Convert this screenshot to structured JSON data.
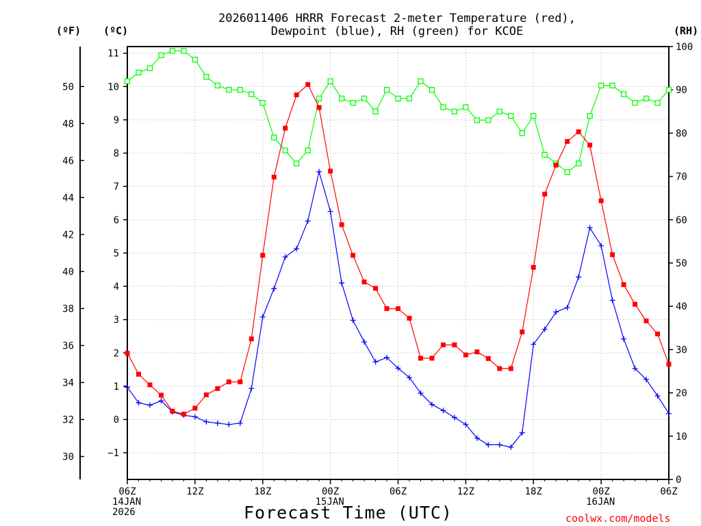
{
  "chart_data": {
    "type": "line",
    "title_line1": "2026011406 HRRR Forecast 2-meter Temperature (red),",
    "title_line2": "Dewpoint (blue), RH (green) for KCOE",
    "xlabel": "Forecast Time (UTC)",
    "left_outer_unit": "(ºF)",
    "left_inner_unit": "(ºC)",
    "right_unit": "(RH)",
    "x_ticks": [
      {
        "hour": 0,
        "label": "06Z"
      },
      {
        "hour": 6,
        "label": "12Z"
      },
      {
        "hour": 12,
        "label": "18Z"
      },
      {
        "hour": 18,
        "label": "00Z"
      },
      {
        "hour": 24,
        "label": "06Z"
      },
      {
        "hour": 30,
        "label": "12Z"
      },
      {
        "hour": 36,
        "label": "18Z"
      },
      {
        "hour": 42,
        "label": "00Z"
      },
      {
        "hour": 48,
        "label": "06Z"
      }
    ],
    "date_labels": [
      {
        "hour": 0,
        "line1": "14JAN",
        "line2": "2026"
      },
      {
        "hour": 18,
        "line1": "15JAN",
        "line2": ""
      },
      {
        "hour": 42,
        "line1": "16JAN",
        "line2": ""
      }
    ],
    "xlim": [
      0,
      48
    ],
    "celsius_ylim": [
      -1.8,
      11.2
    ],
    "celsius_ticks": [
      -1,
      0,
      1,
      2,
      3,
      4,
      5,
      6,
      7,
      8,
      9,
      10,
      11
    ],
    "fahrenheit_ticks": [
      30,
      32,
      34,
      36,
      38,
      40,
      42,
      44,
      46,
      48,
      50
    ],
    "rh_ylim": [
      0,
      100
    ],
    "rh_ticks": [
      0,
      10,
      20,
      30,
      40,
      50,
      60,
      70,
      80,
      90,
      100
    ],
    "series": [
      {
        "name": "Temperature",
        "unit": "C",
        "color": "#ff0000",
        "marker": "filled-square",
        "values": [
          1.99,
          1.36,
          1.04,
          0.73,
          0.25,
          0.16,
          0.34,
          0.74,
          0.93,
          1.13,
          1.13,
          2.42,
          4.93,
          7.28,
          8.75,
          9.75,
          10.06,
          9.37,
          7.46,
          5.85,
          4.93,
          4.13,
          3.94,
          3.33,
          3.33,
          3.04,
          1.84,
          1.84,
          2.24,
          2.24,
          1.94,
          2.03,
          1.83,
          1.53,
          1.53,
          2.63,
          4.57,
          6.77,
          7.64,
          8.35,
          8.64,
          8.24,
          6.57,
          4.95,
          4.05,
          3.46,
          2.96,
          2.57,
          1.66
        ]
      },
      {
        "name": "Dewpoint",
        "unit": "C",
        "color": "#0000ff",
        "marker": "plus",
        "values": [
          0.97,
          0.5,
          0.43,
          0.56,
          0.23,
          0.13,
          0.08,
          -0.07,
          -0.11,
          -0.15,
          -0.11,
          0.93,
          3.08,
          3.93,
          4.88,
          5.13,
          5.96,
          7.44,
          6.25,
          4.1,
          2.98,
          2.33,
          1.73,
          1.86,
          1.54,
          1.26,
          0.79,
          0.45,
          0.27,
          0.06,
          -0.15,
          -0.56,
          -0.76,
          -0.76,
          -0.83,
          -0.4,
          2.26,
          2.71,
          3.23,
          3.36,
          4.28,
          5.76,
          5.22,
          3.58,
          2.42,
          1.53,
          1.2,
          0.71,
          0.18
        ]
      },
      {
        "name": "RH",
        "unit": "%",
        "color": "#00ff00",
        "marker": "open-square",
        "values": [
          92,
          94,
          95,
          98,
          99,
          99,
          97,
          93,
          91,
          90,
          90,
          89,
          87,
          79,
          76,
          73,
          76,
          88,
          92,
          88,
          87,
          88,
          85,
          90,
          88,
          88,
          92,
          90,
          86,
          85,
          86,
          83,
          83,
          85,
          84,
          80,
          84,
          75,
          73,
          71,
          73,
          84,
          91,
          91,
          89,
          87,
          88,
          87,
          90
        ]
      }
    ]
  },
  "credit": "coolwx.com/models"
}
